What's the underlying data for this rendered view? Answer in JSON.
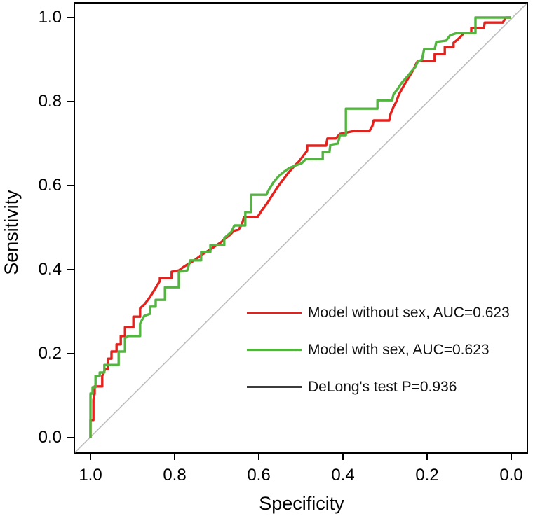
{
  "page": {
    "background": "#ffffff"
  },
  "chart_data": {
    "type": "line",
    "subtype": "roc-curve",
    "title": "",
    "xlabel": "Specificity",
    "ylabel": "Sensitivity",
    "x_ticks": [
      "1.0",
      "0.8",
      "0.6",
      "0.4",
      "0.2",
      "0.0"
    ],
    "y_ticks": [
      "0.0",
      "0.2",
      "0.4",
      "0.6",
      "0.8",
      "1.0"
    ],
    "xlim": [
      1.0,
      0.0
    ],
    "ylim": [
      0.0,
      1.0
    ],
    "x_axis_reversed": true,
    "grid": false,
    "legend_position": "right-center",
    "reference_line": {
      "name": "chance-diagonal",
      "from": [
        1.0,
        0.0
      ],
      "to": [
        0.0,
        1.0
      ],
      "color": "#bdbdbd"
    },
    "series": [
      {
        "name": "Model without sex",
        "auc": "0.623",
        "legend": "Model without sex, AUC=0.623",
        "color": "#e4211c",
        "points": [
          [
            1.0,
            0.0
          ],
          [
            1.0,
            0.042
          ],
          [
            0.993,
            0.042
          ],
          [
            0.993,
            0.09
          ],
          [
            0.99,
            0.105
          ],
          [
            0.99,
            0.122
          ],
          [
            0.972,
            0.122
          ],
          [
            0.972,
            0.147
          ],
          [
            0.965,
            0.163
          ],
          [
            0.958,
            0.163
          ],
          [
            0.958,
            0.188
          ],
          [
            0.95,
            0.188
          ],
          [
            0.95,
            0.205
          ],
          [
            0.938,
            0.205
          ],
          [
            0.938,
            0.222
          ],
          [
            0.928,
            0.222
          ],
          [
            0.928,
            0.242
          ],
          [
            0.918,
            0.242
          ],
          [
            0.918,
            0.263
          ],
          [
            0.898,
            0.263
          ],
          [
            0.898,
            0.288
          ],
          [
            0.882,
            0.288
          ],
          [
            0.882,
            0.308
          ],
          [
            0.872,
            0.317
          ],
          [
            0.862,
            0.33
          ],
          [
            0.852,
            0.345
          ],
          [
            0.843,
            0.36
          ],
          [
            0.835,
            0.373
          ],
          [
            0.835,
            0.38
          ],
          [
            0.807,
            0.38
          ],
          [
            0.807,
            0.395
          ],
          [
            0.79,
            0.398
          ],
          [
            0.778,
            0.407
          ],
          [
            0.765,
            0.415
          ],
          [
            0.752,
            0.423
          ],
          [
            0.74,
            0.432
          ],
          [
            0.728,
            0.44
          ],
          [
            0.715,
            0.448
          ],
          [
            0.702,
            0.457
          ],
          [
            0.69,
            0.465
          ],
          [
            0.678,
            0.475
          ],
          [
            0.668,
            0.483
          ],
          [
            0.66,
            0.492
          ],
          [
            0.648,
            0.495
          ],
          [
            0.64,
            0.508
          ],
          [
            0.635,
            0.525
          ],
          [
            0.603,
            0.525
          ],
          [
            0.592,
            0.542
          ],
          [
            0.58,
            0.558
          ],
          [
            0.568,
            0.577
          ],
          [
            0.555,
            0.597
          ],
          [
            0.543,
            0.613
          ],
          [
            0.53,
            0.63
          ],
          [
            0.517,
            0.645
          ],
          [
            0.505,
            0.657
          ],
          [
            0.495,
            0.67
          ],
          [
            0.485,
            0.683
          ],
          [
            0.485,
            0.695
          ],
          [
            0.44,
            0.695
          ],
          [
            0.437,
            0.712
          ],
          [
            0.417,
            0.712
          ],
          [
            0.407,
            0.723
          ],
          [
            0.373,
            0.73
          ],
          [
            0.337,
            0.73
          ],
          [
            0.33,
            0.742
          ],
          [
            0.327,
            0.755
          ],
          [
            0.29,
            0.755
          ],
          [
            0.287,
            0.77
          ],
          [
            0.28,
            0.787
          ],
          [
            0.273,
            0.8
          ],
          [
            0.267,
            0.817
          ],
          [
            0.258,
            0.833
          ],
          [
            0.25,
            0.847
          ],
          [
            0.242,
            0.86
          ],
          [
            0.233,
            0.875
          ],
          [
            0.227,
            0.888
          ],
          [
            0.222,
            0.897
          ],
          [
            0.182,
            0.897
          ],
          [
            0.182,
            0.913
          ],
          [
            0.158,
            0.913
          ],
          [
            0.158,
            0.93
          ],
          [
            0.137,
            0.93
          ],
          [
            0.137,
            0.94
          ],
          [
            0.128,
            0.947
          ],
          [
            0.118,
            0.957
          ],
          [
            0.113,
            0.963
          ],
          [
            0.095,
            0.963
          ],
          [
            0.095,
            0.975
          ],
          [
            0.065,
            0.975
          ],
          [
            0.063,
            0.988
          ],
          [
            0.02,
            0.988
          ],
          [
            0.013,
            1.0
          ],
          [
            0.0,
            1.0
          ]
        ]
      },
      {
        "name": "Model with sex",
        "auc": "0.623",
        "legend": "Model with sex, AUC=0.623",
        "color": "#53b540",
        "points": [
          [
            1.0,
            0.0
          ],
          [
            1.0,
            0.105
          ],
          [
            0.995,
            0.105
          ],
          [
            0.995,
            0.12
          ],
          [
            0.988,
            0.12
          ],
          [
            0.988,
            0.147
          ],
          [
            0.978,
            0.147
          ],
          [
            0.978,
            0.155
          ],
          [
            0.967,
            0.155
          ],
          [
            0.967,
            0.173
          ],
          [
            0.933,
            0.173
          ],
          [
            0.933,
            0.205
          ],
          [
            0.918,
            0.205
          ],
          [
            0.918,
            0.237
          ],
          [
            0.91,
            0.242
          ],
          [
            0.882,
            0.242
          ],
          [
            0.882,
            0.272
          ],
          [
            0.872,
            0.29
          ],
          [
            0.858,
            0.295
          ],
          [
            0.858,
            0.312
          ],
          [
            0.845,
            0.312
          ],
          [
            0.845,
            0.328
          ],
          [
            0.823,
            0.328
          ],
          [
            0.823,
            0.358
          ],
          [
            0.79,
            0.358
          ],
          [
            0.79,
            0.395
          ],
          [
            0.77,
            0.398
          ],
          [
            0.763,
            0.422
          ],
          [
            0.737,
            0.422
          ],
          [
            0.737,
            0.442
          ],
          [
            0.715,
            0.442
          ],
          [
            0.715,
            0.458
          ],
          [
            0.682,
            0.458
          ],
          [
            0.682,
            0.475
          ],
          [
            0.665,
            0.49
          ],
          [
            0.658,
            0.505
          ],
          [
            0.632,
            0.505
          ],
          [
            0.632,
            0.537
          ],
          [
            0.618,
            0.537
          ],
          [
            0.618,
            0.578
          ],
          [
            0.582,
            0.578
          ],
          [
            0.575,
            0.592
          ],
          [
            0.565,
            0.608
          ],
          [
            0.553,
            0.622
          ],
          [
            0.54,
            0.633
          ],
          [
            0.527,
            0.642
          ],
          [
            0.512,
            0.648
          ],
          [
            0.498,
            0.653
          ],
          [
            0.488,
            0.663
          ],
          [
            0.448,
            0.663
          ],
          [
            0.448,
            0.68
          ],
          [
            0.432,
            0.68
          ],
          [
            0.43,
            0.697
          ],
          [
            0.412,
            0.7
          ],
          [
            0.407,
            0.72
          ],
          [
            0.393,
            0.72
          ],
          [
            0.393,
            0.783
          ],
          [
            0.318,
            0.783
          ],
          [
            0.318,
            0.803
          ],
          [
            0.283,
            0.803
          ],
          [
            0.28,
            0.817
          ],
          [
            0.27,
            0.83
          ],
          [
            0.26,
            0.845
          ],
          [
            0.253,
            0.853
          ],
          [
            0.245,
            0.862
          ],
          [
            0.237,
            0.872
          ],
          [
            0.228,
            0.882
          ],
          [
            0.222,
            0.895
          ],
          [
            0.212,
            0.9
          ],
          [
            0.207,
            0.925
          ],
          [
            0.182,
            0.925
          ],
          [
            0.178,
            0.942
          ],
          [
            0.155,
            0.945
          ],
          [
            0.145,
            0.958
          ],
          [
            0.13,
            0.963
          ],
          [
            0.085,
            0.963
          ],
          [
            0.085,
            1.0
          ],
          [
            0.0,
            1.0
          ]
        ]
      }
    ],
    "annotation": {
      "legend": "DeLong's test P=0.936",
      "p_value": "0.936",
      "color": "#3c3c3c"
    }
  }
}
